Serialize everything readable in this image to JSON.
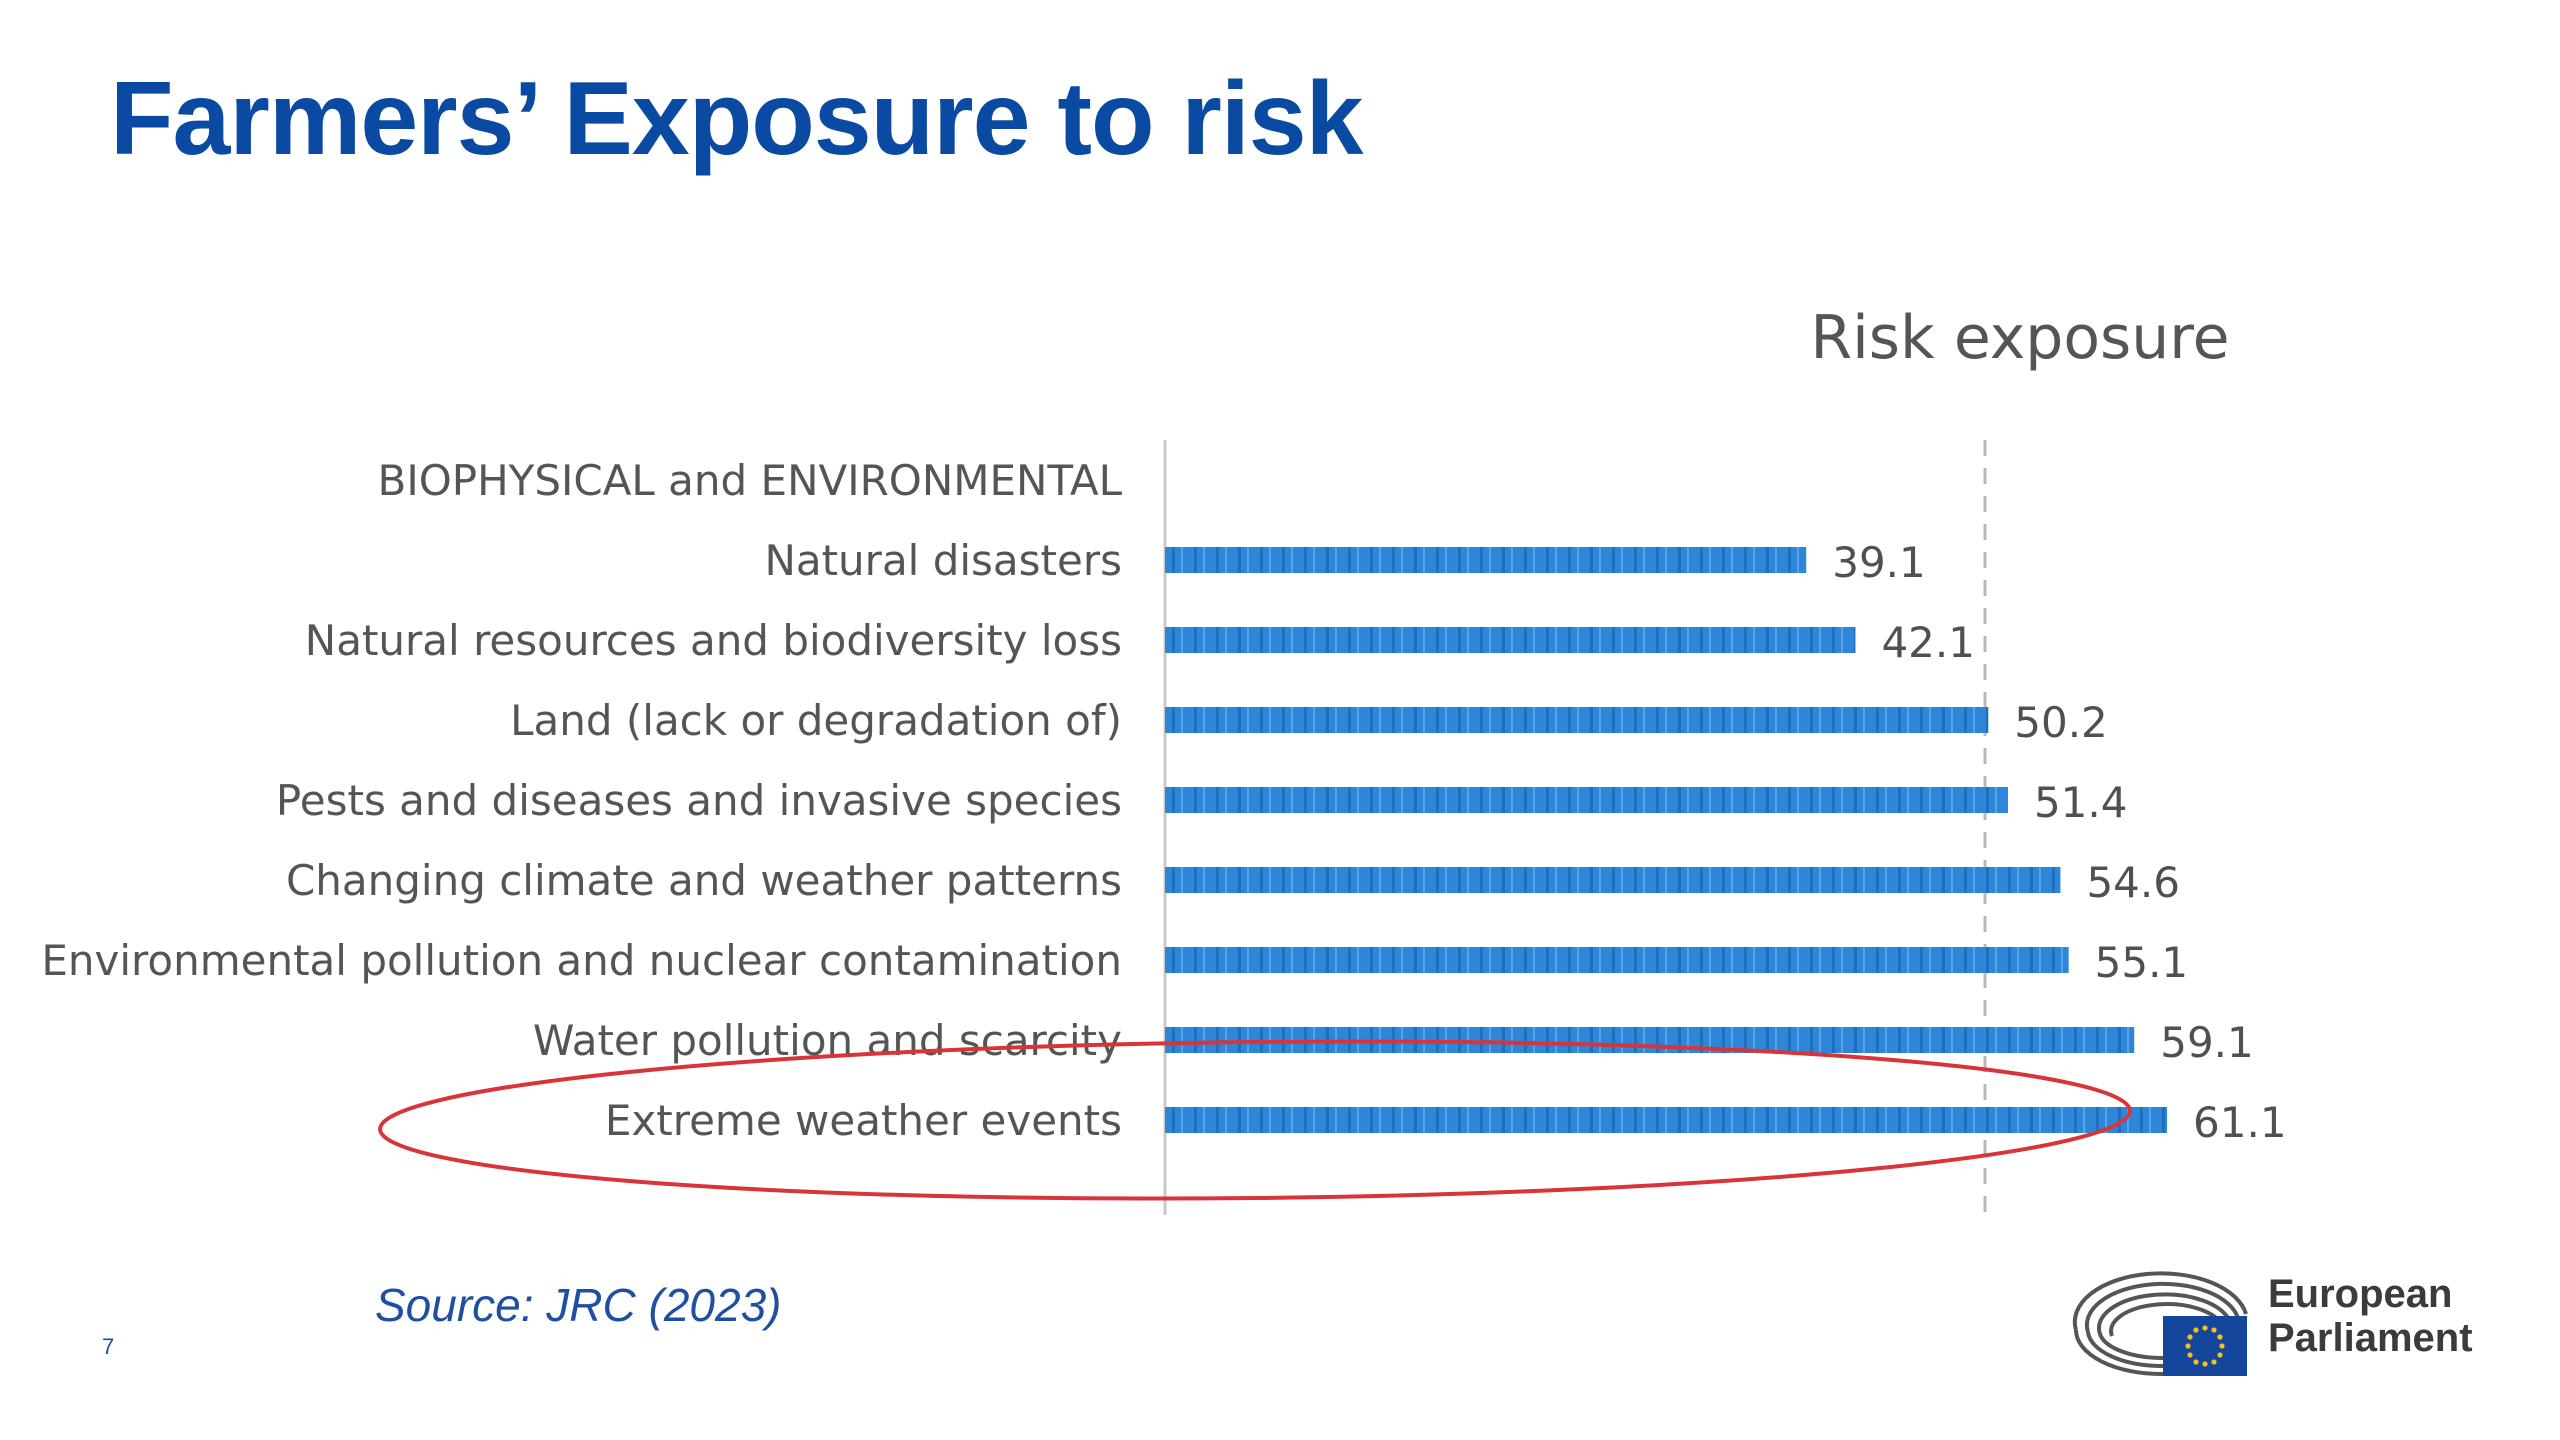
{
  "slide": {
    "title": "Farmers’ Exposure to risk",
    "source": "Source: JRC (2023)",
    "page_number": "7"
  },
  "logo": {
    "line1": "European",
    "line2": "Parliament",
    "icon": "european-parliament-hemicycle-eu-flag"
  },
  "colors": {
    "title": "#0a4aa3",
    "bar": "#2e86d8",
    "highlight_ellipse": "#d9343a",
    "source": "#1f4fa0"
  },
  "chart_data": {
    "type": "bar",
    "orientation": "horizontal",
    "title": "Risk exposure",
    "group_label": "BIOPHYSICAL and ENVIRONMENTAL",
    "categories": [
      "Natural disasters",
      "Natural resources and biodiversity loss",
      "Land (lack or degradation of)",
      "Pests and diseases and invasive species",
      "Changing climate and weather patterns",
      "Environmental pollution and nuclear contamination",
      "Water pollution and scarcity",
      "Extreme weather events"
    ],
    "values": [
      39.1,
      42.1,
      50.2,
      51.4,
      54.6,
      55.1,
      59.1,
      61.1
    ],
    "value_labels": [
      "39.1",
      "42.1",
      "50.2",
      "51.4",
      "54.6",
      "55.1",
      "59.1",
      "61.1"
    ],
    "xlim": [
      0,
      70
    ],
    "reference_line": 50,
    "highlighted_category": "Extreme weather events",
    "grid": false,
    "legend": "none"
  }
}
